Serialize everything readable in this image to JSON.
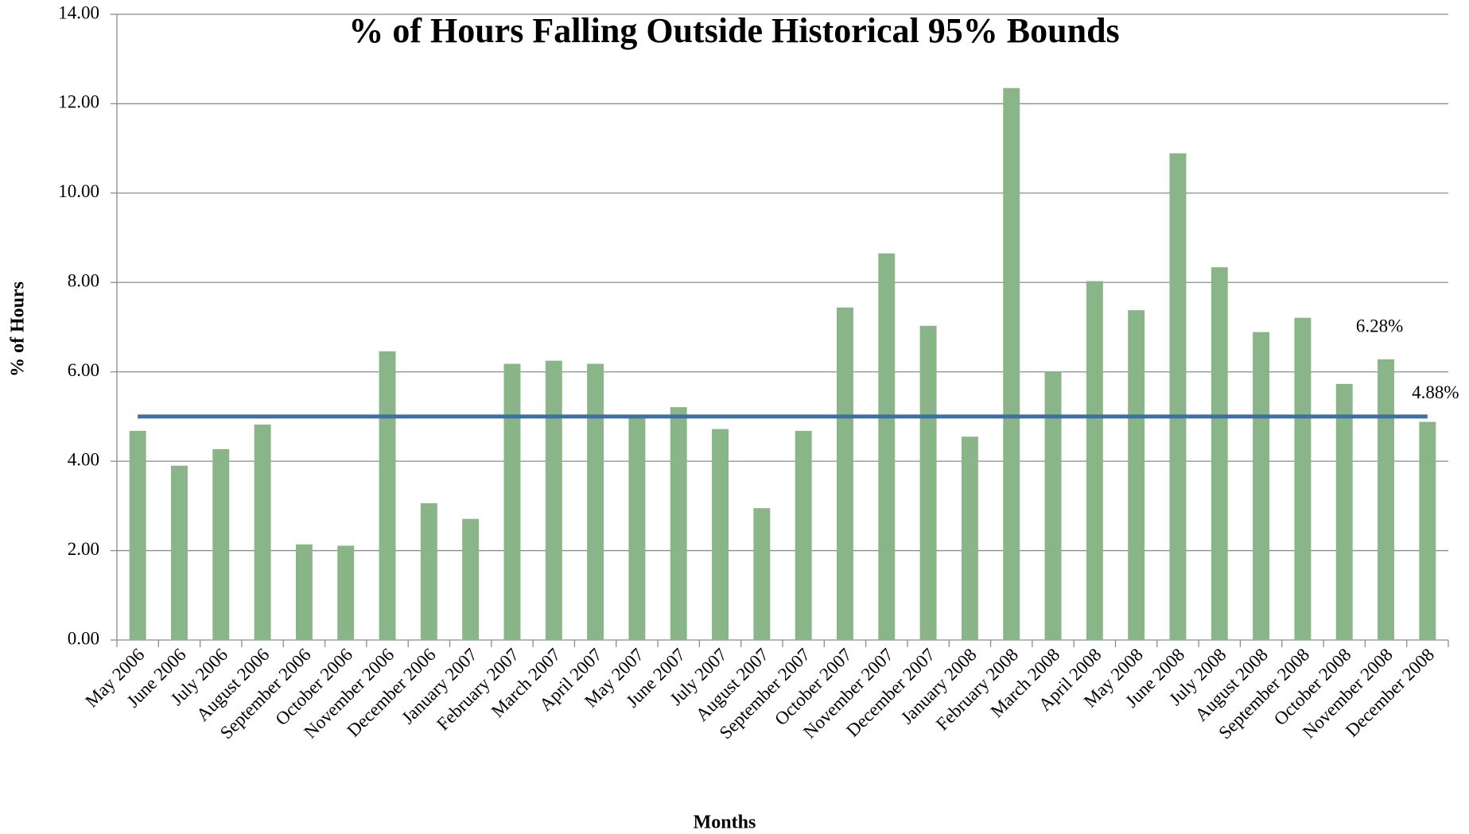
{
  "chart_data": {
    "type": "bar",
    "title": "% of Hours Falling Outside Historical 95% Bounds",
    "x_label": "Months",
    "y_label": "% of Hours",
    "categories": [
      "May 2006",
      "June 2006",
      "July 2006",
      "August 2006",
      "September 2006",
      "October 2006",
      "November 2006",
      "December 2006",
      "January 2007",
      "February 2007",
      "March 2007",
      "April 2007",
      "May 2007",
      "June 2007",
      "July 2007",
      "August 2007",
      "September 2007",
      "October 2007",
      "November 2007",
      "December 2007",
      "January 2008",
      "February 2008",
      "March 2008",
      "April 2008",
      "May 2008",
      "June 2008",
      "July 2008",
      "August 2008",
      "September 2008",
      "October 2008",
      "November 2008",
      "December 2008"
    ],
    "values": [
      4.68,
      3.9,
      4.27,
      4.82,
      2.14,
      2.11,
      6.46,
      3.06,
      2.71,
      6.18,
      6.25,
      6.18,
      5.0,
      5.21,
      4.72,
      2.95,
      4.68,
      7.44,
      8.65,
      7.03,
      4.55,
      12.35,
      6.0,
      8.03,
      7.38,
      10.89,
      8.34,
      6.89,
      7.21,
      5.73,
      6.28,
      4.88
    ],
    "value_labels": [
      null,
      null,
      null,
      null,
      null,
      null,
      null,
      null,
      null,
      null,
      null,
      null,
      null,
      null,
      null,
      null,
      null,
      null,
      null,
      null,
      null,
      null,
      null,
      null,
      null,
      null,
      null,
      null,
      null,
      null,
      "6.28%",
      "4.88%"
    ],
    "color": "#8ab588",
    "threshold": 5,
    "threshold_color": "#3d6fa3",
    "ylim": [
      0,
      14
    ],
    "yticks": [
      {
        "value": 0,
        "label": "0.00"
      },
      {
        "value": 2,
        "label": "2.00"
      },
      {
        "value": 4,
        "label": "4.00"
      },
      {
        "value": 6,
        "label": "6.00"
      },
      {
        "value": 8,
        "label": "8.00"
      },
      {
        "value": 10,
        "label": "10.00"
      },
      {
        "value": 12,
        "label": "12.00"
      },
      {
        "value": 14,
        "label": "14.00"
      }
    ],
    "grid": true
  }
}
